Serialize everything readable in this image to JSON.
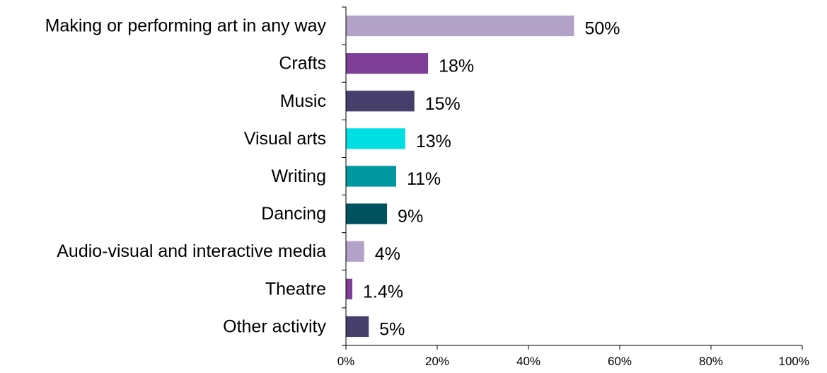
{
  "chart_data": {
    "type": "bar",
    "orientation": "horizontal",
    "categories": [
      "Making or performing art in any way",
      "Crafts",
      "Music",
      "Visual arts",
      "Writing",
      "Dancing",
      "Audio-visual and interactive media",
      "Theatre",
      "Other activity"
    ],
    "values": [
      50,
      18,
      15,
      13,
      11,
      9,
      4,
      1.4,
      5
    ],
    "value_labels": [
      "50%",
      "18%",
      "15%",
      "13%",
      "11%",
      "9%",
      "4%",
      "1.4%",
      "5%"
    ],
    "colors": [
      "#b3a2c7",
      "#7f3f98",
      "#463e6b",
      "#00dfe3",
      "#00979f",
      "#00535e",
      "#b3a2c7",
      "#7f3f98",
      "#463e6b"
    ],
    "xlim": [
      0,
      100
    ],
    "xticks": [
      0,
      20,
      40,
      60,
      80,
      100
    ],
    "xtick_labels": [
      "0%",
      "20%",
      "40%",
      "60%",
      "80%",
      "100%"
    ],
    "grid": false,
    "legend": "none",
    "title": "",
    "xlabel": "",
    "ylabel": ""
  }
}
